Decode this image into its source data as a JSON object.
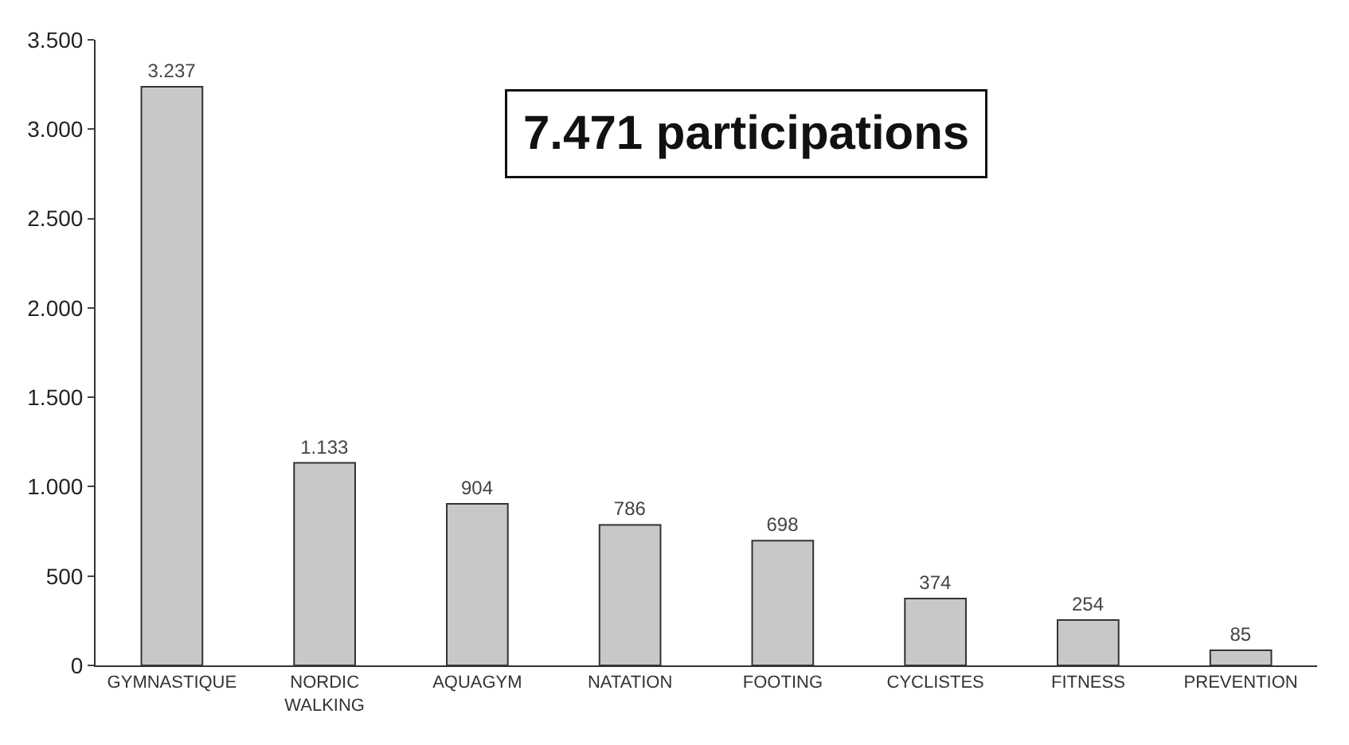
{
  "chart_data": {
    "type": "bar",
    "categories": [
      "GYMNASTIQUE",
      "NORDIC WALKING",
      "AQUAGYM",
      "NATATION",
      "FOOTING",
      "CYCLISTES",
      "FITNESS",
      "PREVENTION"
    ],
    "values": [
      3237,
      1133,
      904,
      786,
      698,
      374,
      254,
      85
    ],
    "value_labels": [
      "3.237",
      "1.133",
      "904",
      "786",
      "698",
      "374",
      "254",
      "85"
    ],
    "color": "#c8c8c8",
    "ylim": [
      0,
      3500
    ],
    "yticks": [
      {
        "value": 0,
        "label": "0"
      },
      {
        "value": 500,
        "label": "500"
      },
      {
        "value": 1000,
        "label": "1.000"
      },
      {
        "value": 1500,
        "label": "1.500"
      },
      {
        "value": 2000,
        "label": "2.000"
      },
      {
        "value": 2500,
        "label": "2.500"
      },
      {
        "value": 3000,
        "label": "3.000"
      },
      {
        "value": 3500,
        "label": "3.500"
      }
    ],
    "legend": false,
    "annotations": [
      "7.471 participations"
    ]
  }
}
